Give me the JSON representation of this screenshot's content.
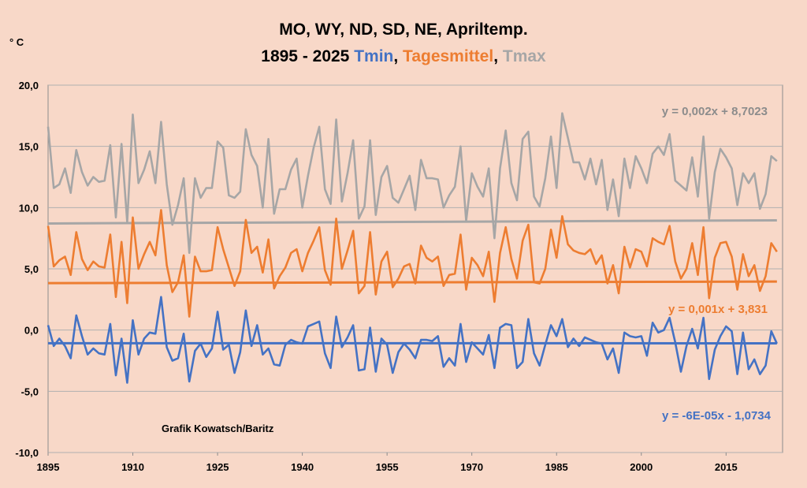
{
  "chart_data": {
    "type": "line",
    "title_line1": "MO, WY, ND, SD, NE, Apriltemp.",
    "title_line2_prefix": "1895 - 2025 ",
    "ylabel": "° C",
    "credit": "Grafik Kowatsch/Baritz",
    "xlim": [
      1895,
      2025
    ],
    "ylim": [
      -10,
      20
    ],
    "x_ticks": [
      "1895",
      "1910",
      "1925",
      "1940",
      "1955",
      "1970",
      "1985",
      "2000",
      "2015"
    ],
    "y_ticks": [
      "20,0",
      "15,0",
      "10,0",
      "5,0",
      "0,0",
      "-5,0",
      "-10,0"
    ],
    "grid": true,
    "series": [
      {
        "name": "Tmax",
        "color": "#a6a6a6",
        "trend_label": "y = 0,002x + 8,7023",
        "trend": {
          "slope": 0.002,
          "intercept": 8.7023
        },
        "values": [
          16.6,
          11.6,
          11.9,
          13.2,
          11.2,
          14.7,
          12.9,
          11.8,
          12.5,
          12.1,
          12.2,
          15.1,
          9.2,
          15.2,
          8.8,
          17.6,
          12.0,
          13.1,
          14.6,
          12.0,
          17.0,
          11.9,
          8.6,
          10.2,
          12.4,
          6.3,
          12.4,
          10.8,
          11.6,
          11.6,
          15.4,
          14.9,
          11.0,
          10.8,
          11.3,
          16.4,
          14.3,
          13.4,
          10.0,
          15.6,
          9.5,
          11.5,
          11.5,
          13.1,
          14.0,
          10.0,
          12.6,
          14.9,
          16.6,
          11.5,
          10.3,
          17.2,
          10.5,
          12.8,
          15.5,
          9.1,
          10.1,
          15.5,
          9.4,
          12.5,
          13.4,
          10.8,
          10.4,
          11.5,
          12.6,
          9.8,
          13.9,
          12.4,
          12.4,
          12.3,
          10.0,
          11.0,
          11.7,
          15.0,
          8.9,
          12.8,
          11.7,
          10.9,
          13.2,
          7.5,
          13.2,
          16.3,
          12.0,
          10.6,
          15.6,
          16.2,
          10.9,
          10.1,
          12.4,
          15.8,
          11.6,
          17.7,
          15.7,
          13.7,
          13.7,
          12.3,
          14.0,
          11.9,
          13.9,
          9.8,
          12.3,
          9.3,
          14.0,
          11.6,
          14.2,
          13.2,
          12.0,
          14.4,
          15.0,
          14.3,
          16.0,
          12.2,
          11.8,
          11.4,
          14.1,
          10.9,
          15.8,
          9.1,
          12.9,
          14.8,
          14.1,
          13.2,
          10.2,
          12.8,
          12.0,
          12.8,
          9.9,
          11.1,
          14.2,
          13.8
        ]
      },
      {
        "name": "Tagesmittel",
        "color": "#ed7d31",
        "trend_label": "y = 0,001x + 3,831",
        "trend": {
          "slope": 0.001,
          "intercept": 3.831
        },
        "values": [
          8.5,
          5.2,
          5.7,
          6.0,
          4.5,
          8.0,
          5.8,
          4.9,
          5.6,
          5.2,
          5.1,
          7.8,
          2.7,
          7.2,
          2.2,
          9.2,
          5.0,
          6.2,
          7.2,
          6.1,
          9.8,
          5.3,
          3.1,
          3.9,
          6.1,
          1.1,
          6.0,
          4.8,
          4.8,
          4.9,
          8.4,
          6.6,
          5.1,
          3.6,
          4.8,
          9.0,
          6.3,
          6.8,
          4.7,
          7.4,
          3.4,
          4.4,
          5.1,
          6.3,
          6.6,
          4.8,
          6.3,
          7.3,
          8.4,
          4.9,
          3.7,
          9.1,
          5.0,
          6.5,
          8.1,
          3.0,
          3.6,
          8.0,
          2.9,
          5.6,
          6.4,
          3.5,
          4.2,
          5.2,
          5.4,
          3.8,
          6.9,
          5.9,
          5.6,
          6.0,
          3.6,
          4.5,
          4.6,
          7.8,
          3.3,
          5.9,
          5.3,
          4.4,
          6.4,
          2.3,
          6.3,
          8.4,
          5.8,
          4.2,
          7.3,
          8.6,
          3.9,
          3.8,
          5.0,
          8.2,
          5.9,
          9.3,
          7.0,
          6.5,
          6.3,
          6.2,
          6.6,
          5.4,
          6.1,
          3.8,
          5.3,
          3.0,
          6.8,
          5.1,
          6.6,
          6.4,
          5.2,
          7.5,
          7.2,
          7.0,
          8.5,
          5.6,
          4.2,
          5.0,
          7.1,
          4.5,
          8.4,
          2.6,
          5.9,
          7.1,
          7.2,
          6.0,
          3.3,
          6.2,
          4.4,
          5.3,
          3.2,
          4.4,
          7.1,
          6.4
        ]
      },
      {
        "name": "Tmin",
        "color": "#4472c4",
        "trend_label": "y = -6E-05x - 1,0734",
        "trend": {
          "slope": -6e-05,
          "intercept": -1.0734
        },
        "values": [
          0.4,
          -1.3,
          -0.7,
          -1.3,
          -2.3,
          1.2,
          -0.5,
          -2.0,
          -1.5,
          -1.9,
          -2.0,
          0.5,
          -3.7,
          -0.7,
          -4.3,
          0.8,
          -2.0,
          -0.7,
          -0.2,
          -0.3,
          2.7,
          -1.4,
          -2.5,
          -2.3,
          -0.3,
          -4.2,
          -1.7,
          -1.1,
          -2.2,
          -1.5,
          1.5,
          -1.6,
          -1.2,
          -3.5,
          -1.8,
          1.6,
          -1.3,
          0.4,
          -2.0,
          -1.5,
          -2.8,
          -2.9,
          -1.2,
          -0.8,
          -1.0,
          -1.1,
          0.3,
          0.5,
          0.7,
          -1.9,
          -3.1,
          1.1,
          -1.4,
          -0.6,
          0.4,
          -3.3,
          -3.2,
          0.2,
          -3.4,
          -0.7,
          -1.2,
          -3.5,
          -1.8,
          -1.1,
          -1.6,
          -2.3,
          -0.8,
          -0.8,
          -0.9,
          -0.5,
          -3.0,
          -2.3,
          -2.9,
          0.5,
          -2.6,
          -1.0,
          -1.5,
          -2.0,
          -0.4,
          -3.1,
          0.2,
          0.5,
          0.4,
          -3.1,
          -2.6,
          0.9,
          -1.9,
          -2.9,
          -1.2,
          0.4,
          -0.5,
          0.9,
          -1.4,
          -0.7,
          -1.3,
          -0.6,
          -0.8,
          -1.0,
          -1.1,
          -2.4,
          -1.5,
          -3.5,
          -0.2,
          -0.5,
          -0.6,
          -0.5,
          -2.1,
          0.6,
          -0.2,
          0.0,
          1.0,
          -1.0,
          -3.4,
          -1.3,
          0.1,
          -1.5,
          1.0,
          -4.0,
          -1.6,
          -0.5,
          0.3,
          -0.1,
          -3.6,
          -0.2,
          -3.2,
          -2.4,
          -3.6,
          -2.9,
          -0.1,
          -1.1
        ]
      }
    ]
  }
}
